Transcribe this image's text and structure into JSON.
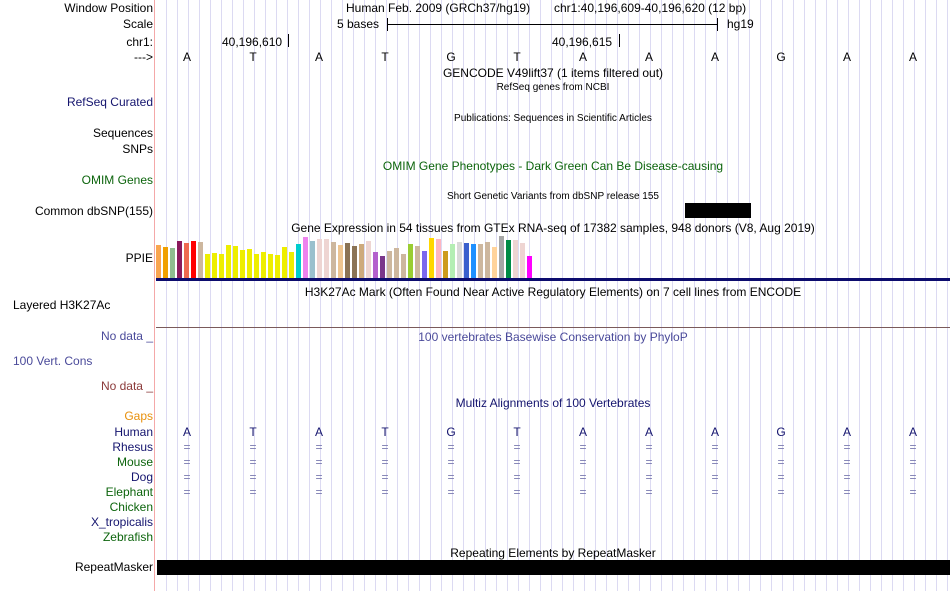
{
  "labels": {
    "window_position": "Window Position",
    "scale": "Scale",
    "chrom": "chr1:",
    "strand": "--->",
    "refseq": "RefSeq Curated",
    "sequences": "Sequences",
    "snps": "SNPs",
    "omim": "OMIM Genes",
    "dbsnp": "Common dbSNP(155)",
    "gtex": "PPIE",
    "h3k27ac": "Layered H3K27Ac",
    "nodata1": "No data _",
    "cons": "100 Vert. Cons",
    "nodata2": "No data _",
    "gaps": "Gaps",
    "repeatmasker": "RepeatMasker"
  },
  "header": {
    "assembly": "Human Feb. 2009 (GRCh37/hg19)",
    "position": "chr1:40,196,609-40,196,620 (12 bp)",
    "scale_label": "5 bases",
    "scale_db": "hg19",
    "coord1": "40,196,610",
    "coord2": "40,196,615"
  },
  "bases": [
    "A",
    "T",
    "A",
    "T",
    "G",
    "T",
    "A",
    "A",
    "A",
    "G",
    "A",
    "A"
  ],
  "tracks": {
    "gencode": "GENCODE V49lift37 (1 items filtered out)",
    "refseq": "RefSeq genes from NCBI",
    "publications": "Publications: Sequences in Scientific Articles",
    "omim": "OMIM Gene Phenotypes - Dark Green Can Be Disease-causing",
    "dbsnp": "Short Genetic Variants from dbSNP release 155",
    "gtex": "Gene Expression in 54 tissues from GTEx RNA-seq of 17382 samples, 948 donors (V8, Aug 2019)",
    "h3k27ac": "H3K27Ac Mark (Often Found Near Active Regulatory Elements) on 7 cell lines from ENCODE",
    "phylop": "100 vertebrates Basewise Conservation by PhyloP",
    "multiz": "Multiz Alignments of 100 Vertebrates",
    "rmsk": "Repeating Elements by RepeatMasker"
  },
  "gtex_bars": {
    "values": [
      98,
      92,
      89,
      110,
      104,
      110,
      107,
      71,
      74,
      71,
      98,
      95,
      83,
      86,
      71,
      77,
      71,
      68,
      92,
      77,
      101,
      122,
      110,
      116,
      116,
      107,
      98,
      104,
      95,
      101,
      110,
      77,
      65,
      80,
      89,
      71,
      101,
      95,
      80,
      119,
      116,
      80,
      101,
      107,
      104,
      101,
      101,
      107,
      92,
      125,
      113,
      113,
      104,
      65
    ],
    "colors": [
      "#f9a54f",
      "#f0a000",
      "#8fbc8f",
      "#8b1a5c",
      "#ee6a50",
      "#ff0000",
      "#cdb79e",
      "#eeee00",
      "#eeee00",
      "#eeee00",
      "#eeee00",
      "#eeee00",
      "#eeee00",
      "#eeee00",
      "#eeee00",
      "#eeee00",
      "#eeee00",
      "#eeee00",
      "#eeee00",
      "#eeee00",
      "#00cdcd",
      "#ee82ee",
      "#9ac0cd",
      "#eed5d2",
      "#eed5d2",
      "#cdb79e",
      "#eec591",
      "#8b7355",
      "#8b7355",
      "#cdaa7d",
      "#eed5d2",
      "#b460cd",
      "#7a378b",
      "#cdb79e",
      "#cdb79e",
      "#cdb79e",
      "#9acd32",
      "#cdb79e",
      "#7b68ee",
      "#ffd700",
      "#ffb6c1",
      "#cd9b1d",
      "#b4eeb4",
      "#d9d9d9",
      "#3a5fcd",
      "#1e90ff",
      "#cdb79e",
      "#cdb79e",
      "#ffd39b",
      "#a6a6a6",
      "#008b45",
      "#eed5d2",
      "#eed5d2",
      "#ff00ff"
    ]
  },
  "species": [
    {
      "name": "Human",
      "color": "#14146e",
      "seq": [
        "A",
        "T",
        "A",
        "T",
        "G",
        "T",
        "A",
        "A",
        "A",
        "G",
        "A",
        "A"
      ]
    },
    {
      "name": "Rhesus",
      "color": "#14146e",
      "seq": [
        "=",
        "=",
        "=",
        "=",
        "=",
        "=",
        "=",
        "=",
        "=",
        "=",
        "=",
        "="
      ]
    },
    {
      "name": "Mouse",
      "color": "#0c640c",
      "seq": [
        "=",
        "=",
        "=",
        "=",
        "=",
        "=",
        "=",
        "=",
        "=",
        "=",
        "=",
        "="
      ]
    },
    {
      "name": "Dog",
      "color": "#14146e",
      "seq": [
        "=",
        "=",
        "=",
        "=",
        "=",
        "=",
        "=",
        "=",
        "=",
        "=",
        "=",
        "="
      ]
    },
    {
      "name": "Elephant",
      "color": "#0c640c",
      "seq": [
        "=",
        "=",
        "=",
        "=",
        "=",
        "=",
        "=",
        "=",
        "=",
        "=",
        "=",
        "="
      ]
    },
    {
      "name": "Chicken",
      "color": "#0c640c",
      "seq": []
    },
    {
      "name": "X_tropicalis",
      "color": "#14146e",
      "seq": []
    },
    {
      "name": "Zebrafish",
      "color": "#0c640c",
      "seq": []
    }
  ]
}
